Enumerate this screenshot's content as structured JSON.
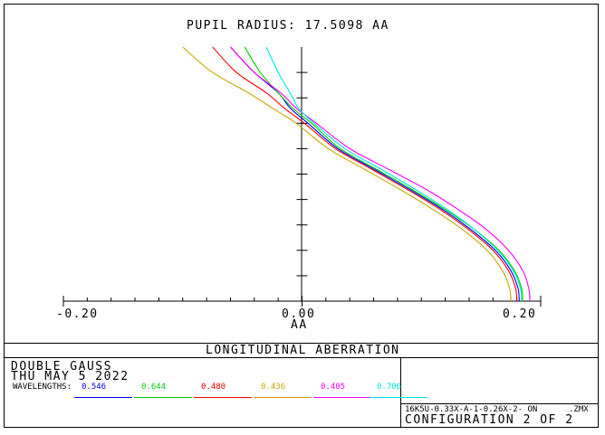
{
  "chart_data": {
    "type": "line",
    "title": "PUPIL RADIUS: 17.5098  AA",
    "xlabel": "AA",
    "xlim": [
      -0.2,
      0.2
    ],
    "ylim": [
      0,
      1
    ],
    "tick_labels": [
      "-0.20",
      "0.00",
      "0.20"
    ],
    "y_ticks": [
      0.1,
      0.2,
      0.3,
      0.4,
      0.5,
      0.6,
      0.7,
      0.8,
      0.9
    ],
    "x_minor_ticks": [
      -0.18,
      -0.16,
      -0.14,
      -0.12,
      -0.1,
      -0.08,
      -0.06,
      -0.04,
      -0.02,
      0.02,
      0.04,
      0.06,
      0.08,
      0.1,
      0.12,
      0.14,
      0.16,
      0.18
    ],
    "series": [
      {
        "name": "0.546",
        "color": "#0000ff",
        "x": [
          0.182,
          0.181,
          0.175,
          0.162,
          0.142,
          0.118,
          0.09,
          0.06,
          0.03,
          0.005,
          -0.01,
          -0.02,
          -0.04,
          -0.06
        ],
        "y": [
          0.0,
          0.05,
          0.12,
          0.2,
          0.28,
          0.36,
          0.44,
          0.52,
          0.6,
          0.7,
          0.76,
          0.82,
          0.9,
          1.0
        ]
      },
      {
        "name": "0.644",
        "color": "#00cc00",
        "x": [
          0.185,
          0.184,
          0.178,
          0.165,
          0.145,
          0.12,
          0.092,
          0.062,
          0.032,
          0.008,
          -0.008,
          -0.02,
          -0.035,
          -0.048
        ],
        "y": [
          0.0,
          0.05,
          0.12,
          0.2,
          0.28,
          0.36,
          0.44,
          0.52,
          0.6,
          0.7,
          0.76,
          0.82,
          0.9,
          1.0
        ]
      },
      {
        "name": "0.480",
        "color": "#ff0000",
        "x": [
          0.18,
          0.179,
          0.173,
          0.16,
          0.14,
          0.116,
          0.088,
          0.058,
          0.028,
          0.002,
          -0.015,
          -0.03,
          -0.055,
          -0.075
        ],
        "y": [
          0.0,
          0.05,
          0.12,
          0.2,
          0.28,
          0.36,
          0.44,
          0.52,
          0.6,
          0.7,
          0.76,
          0.82,
          0.9,
          1.0
        ]
      },
      {
        "name": "0.436",
        "color": "#c8a800",
        "x": [
          0.175,
          0.174,
          0.168,
          0.155,
          0.135,
          0.11,
          0.082,
          0.052,
          0.022,
          -0.005,
          -0.025,
          -0.045,
          -0.075,
          -0.1
        ],
        "y": [
          0.0,
          0.05,
          0.12,
          0.2,
          0.28,
          0.36,
          0.44,
          0.52,
          0.6,
          0.7,
          0.76,
          0.82,
          0.9,
          1.0
        ]
      },
      {
        "name": "0.405",
        "color": "#ff00ff",
        "x": [
          0.191,
          0.19,
          0.185,
          0.173,
          0.155,
          0.131,
          0.104,
          0.072,
          0.04,
          0.012,
          -0.005,
          -0.018,
          -0.04,
          -0.06
        ],
        "y": [
          0.0,
          0.05,
          0.12,
          0.2,
          0.28,
          0.36,
          0.44,
          0.52,
          0.6,
          0.7,
          0.76,
          0.82,
          0.9,
          1.0
        ]
      },
      {
        "name": "0.706",
        "color": "#00e5e5",
        "x": [
          0.184,
          0.183,
          0.177,
          0.164,
          0.145,
          0.122,
          0.095,
          0.066,
          0.036,
          0.01,
          -0.003,
          -0.01,
          -0.02,
          -0.03
        ],
        "y": [
          0.0,
          0.05,
          0.12,
          0.2,
          0.28,
          0.36,
          0.44,
          0.52,
          0.6,
          0.7,
          0.76,
          0.82,
          0.9,
          1.0
        ]
      }
    ]
  },
  "footer": {
    "plot_name": "LONGITUDINAL ABERRATION",
    "lens_title": "DOUBLE GAUSS",
    "date": "THU MAY 5 2022",
    "wavelengths_label": "WAVELENGTHS:",
    "wavelengths": [
      {
        "label": "0.546",
        "color": "#0000ff"
      },
      {
        "label": "0.644",
        "color": "#00cc00"
      },
      {
        "label": "0.480",
        "color": "#ff0000"
      },
      {
        "label": "0.436",
        "color": "#c8a800"
      },
      {
        "label": "0.405",
        "color": "#ff00ff"
      },
      {
        "label": "0.706",
        "color": "#00e5e5"
      }
    ],
    "file_name": "16K5U-0.33X-A-1-0.26X-2- ON",
    "file_ext": ".ZMX",
    "configuration": "CONFIGURATION 2 OF 2"
  }
}
